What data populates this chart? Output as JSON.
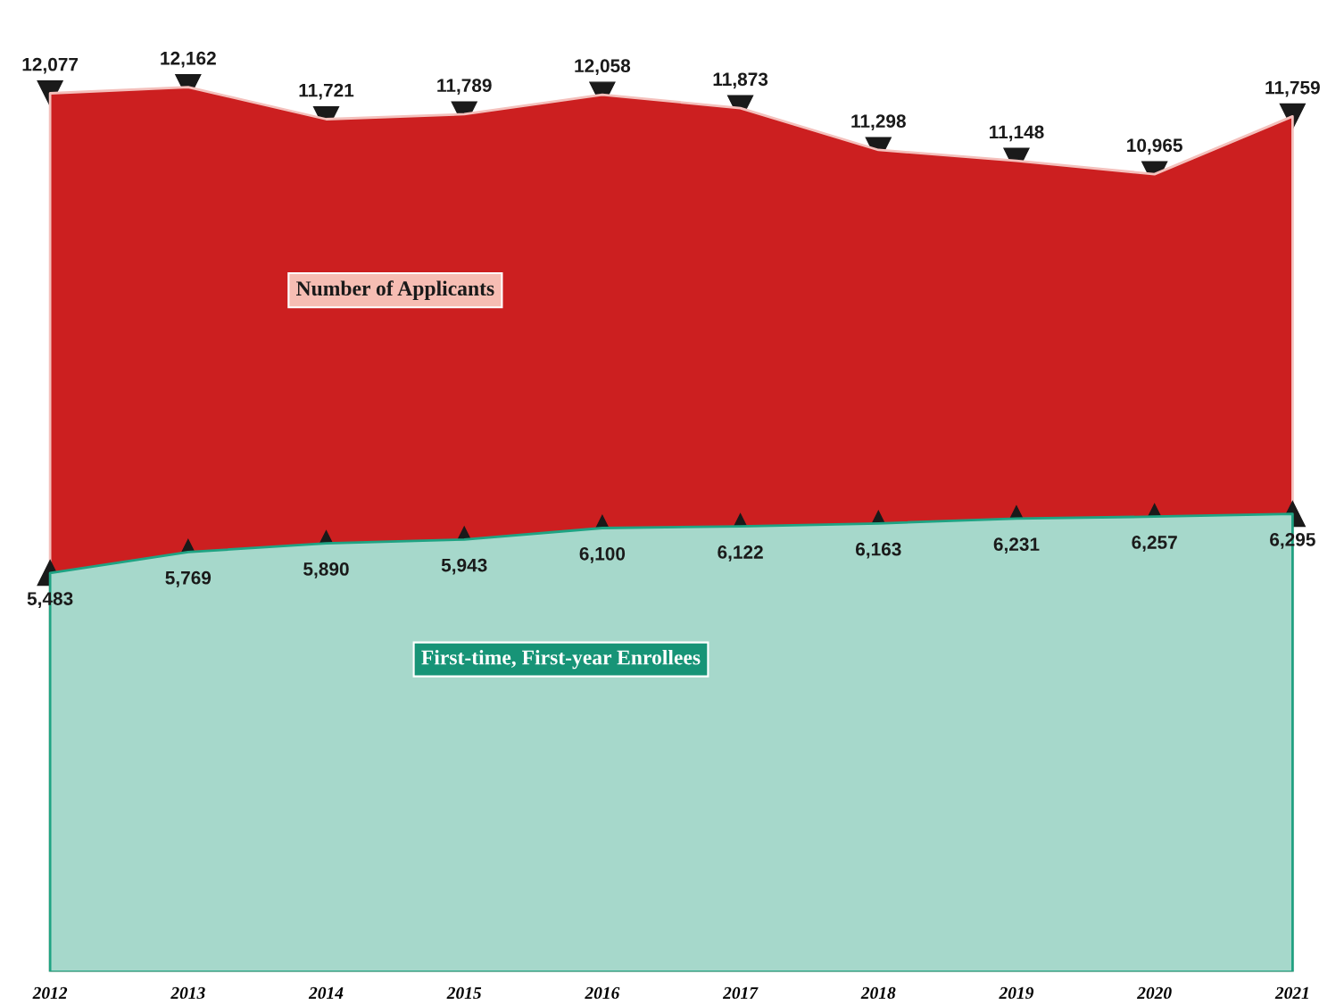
{
  "chart_data": {
    "type": "area",
    "categories": [
      "2012",
      "2013",
      "2014",
      "2015",
      "2016",
      "2017",
      "2018",
      "2019",
      "2020",
      "2021"
    ],
    "series": [
      {
        "name": "Number of Applicants",
        "color": "#cc1f20",
        "values": [
          12077,
          12162,
          11721,
          11789,
          12058,
          11873,
          11298,
          11148,
          10965,
          11759
        ],
        "value_labels": [
          "12,077",
          "12,162",
          "11,721",
          "11,789",
          "12,058",
          "11,873",
          "11,298",
          "11,148",
          "10,965",
          "11,759"
        ]
      },
      {
        "name": "First-time, First-year Enrollees",
        "color": "#a6d8cb",
        "values": [
          5483,
          5769,
          5890,
          5943,
          6100,
          6122,
          6163,
          6231,
          6257,
          6295
        ],
        "value_labels": [
          "5,483",
          "5,769",
          "5,890",
          "5,943",
          "6,100",
          "6,122",
          "6,163",
          "6,231",
          "6,257",
          "6,295"
        ]
      }
    ],
    "marker": "triangle",
    "legend": false,
    "tick_labels": "x"
  }
}
